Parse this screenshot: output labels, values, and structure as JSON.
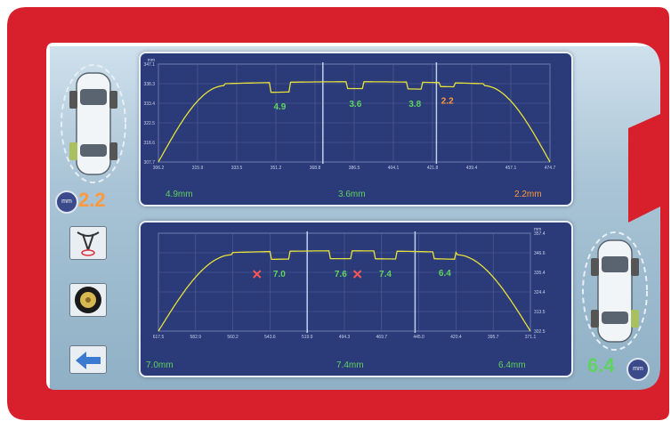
{
  "top_panel": {
    "y_ticks": [
      "347.1",
      "338.3",
      "333.4",
      "322.5",
      "318.6",
      "307.7"
    ],
    "y_unit": "mm",
    "x_ticks": [
      "306.2",
      "315.9",
      "333.5",
      "351.2",
      "368.8",
      "386.5",
      "404.1",
      "421.8",
      "439.4",
      "457.1",
      "474.7"
    ],
    "x_unit": "mm",
    "depth_labels": [
      {
        "text": "4.9",
        "color": "#5fd35f"
      },
      {
        "text": "3.6",
        "color": "#5fd35f"
      },
      {
        "text": "3.8",
        "color": "#5fd35f"
      },
      {
        "text": "2.2",
        "color": "#ff9a3c"
      }
    ],
    "readouts": {
      "left": "4.9mm",
      "center": "3.6mm",
      "right": "2.2mm"
    }
  },
  "bottom_panel": {
    "y_ticks": [
      "357.4",
      "346.6",
      "335.4",
      "324.4",
      "313.5",
      "302.5"
    ],
    "y_unit": "mm",
    "x_ticks": [
      "617.5",
      "582.9",
      "560.2",
      "543.6",
      "519.9",
      "494.3",
      "469.7",
      "445.0",
      "420.4",
      "395.7",
      "371.1"
    ],
    "depth_labels": [
      {
        "text": "7.0",
        "color": "#5fd35f"
      },
      {
        "text": "7.6",
        "color": "#5fd35f"
      },
      {
        "text": "7.4",
        "color": "#5fd35f"
      },
      {
        "text": "6.4",
        "color": "#5fd35f"
      }
    ],
    "readouts": {
      "left": "7.0mm",
      "center": "7.4mm",
      "right": "6.4mm"
    }
  },
  "left_sidebar": {
    "value": "2.2",
    "value_color": "#ff9a3c",
    "mm_badge": "mm"
  },
  "right_sidebar": {
    "value": "6.4",
    "value_color": "#5fd35f",
    "mm_badge": "mm"
  },
  "colors": {
    "bezel_red": "#d8202c",
    "panel_bg": "#2b3a78",
    "profile_line": "#e6e23a",
    "marker_line": "#bcd0ee",
    "good": "#5fd35f",
    "warn": "#ff9a3c",
    "bad_marker": "#ff5555"
  }
}
